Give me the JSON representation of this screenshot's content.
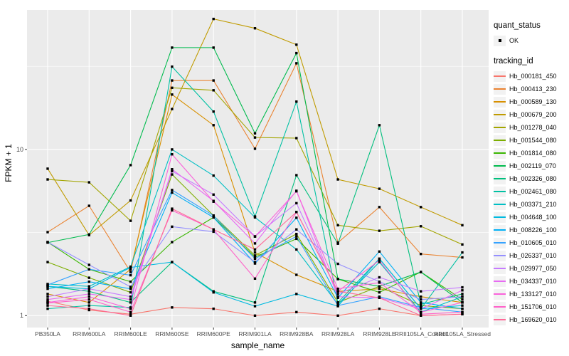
{
  "figure": {
    "background": "#FFFFFF",
    "panel_background": "#EBEBEB",
    "gridline_color": "#FFFFFF",
    "point_color": "#000000",
    "axis_text_color": "#4D4D4D"
  },
  "axes": {
    "x_title": "sample_name",
    "y_title": "FPKM + 1",
    "y_tick_labels": [
      "10",
      "1"
    ]
  },
  "legend": {
    "quant_status_title": "quant_status",
    "quant_status_items": [
      {
        "label": "OK",
        "symbol": "point"
      }
    ],
    "tracking_title": "tracking_id"
  },
  "chart_data": {
    "type": "line",
    "title": "",
    "xlabel": "sample_name",
    "ylabel": "FPKM + 1",
    "y_scale": "log10",
    "ylim": [
      0.85,
      80
    ],
    "y_major_gridlines": [
      1,
      10
    ],
    "y_minor_gridlines": [
      3.162,
      31.62
    ],
    "grid": true,
    "legend_position": "right",
    "point_shape": "small-black-square",
    "categories": [
      "PB350LA",
      "RRIM600LA",
      "RRIM600LE",
      "RRIM600SE",
      "RRIM600PE",
      "RRIM901LA",
      "RRIM928BA",
      "RRIM928LA",
      "RRIM928LE",
      "RRII105LA_Control",
      "RRII105LA_Stressed"
    ],
    "series": [
      {
        "name": "Hb_000181_450",
        "color": "#F8766D",
        "values": [
          1.22,
          1.08,
          1.02,
          1.12,
          1.1,
          1.0,
          1.05,
          1.0,
          1.1,
          1.0,
          1.02
        ]
      },
      {
        "name": "Hb_000413_230",
        "color": "#EA8331",
        "values": [
          3.18,
          4.58,
          1.83,
          26,
          26,
          10.1,
          33,
          2.75,
          4.5,
          2.35,
          2.24
        ]
      },
      {
        "name": "Hb_000589_130",
        "color": "#D89000",
        "values": [
          1.35,
          1.2,
          1.9,
          21.4,
          14,
          2.4,
          1.76,
          1.4,
          1.45,
          1.3,
          1.2
        ]
      },
      {
        "name": "Hb_000679_200",
        "color": "#C09B00",
        "values": [
          7.66,
          3.05,
          4.93,
          17.5,
          61,
          53.6,
          42.7,
          6.6,
          5.8,
          4.5,
          3.5
        ]
      },
      {
        "name": "Hb_001278_040",
        "color": "#A3A500",
        "values": [
          6.6,
          6.34,
          3.72,
          23.5,
          22.7,
          11.8,
          11.7,
          3.5,
          3.24,
          3.45,
          2.68
        ]
      },
      {
        "name": "Hb_001544_080",
        "color": "#7CAE00",
        "values": [
          2.1,
          1.69,
          1.38,
          7.07,
          4.0,
          2.3,
          3.1,
          1.2,
          1.5,
          1.15,
          1.1
        ]
      },
      {
        "name": "Hb_001814_080",
        "color": "#39B600",
        "values": [
          2.77,
          1.9,
          1.6,
          2.77,
          3.9,
          2.25,
          2.9,
          1.66,
          1.38,
          1.83,
          1.25
        ]
      },
      {
        "name": "Hb_002119_070",
        "color": "#00BB4E",
        "values": [
          2.75,
          3.08,
          8.05,
          41,
          41,
          12.5,
          38,
          1.66,
          1.5,
          1.83,
          1.2
        ]
      },
      {
        "name": "Hb_002326_080",
        "color": "#00BF7D",
        "values": [
          1.5,
          1.4,
          1.2,
          2.1,
          1.4,
          1.2,
          7.0,
          2.71,
          14,
          1.17,
          1.35
        ]
      },
      {
        "name": "Hb_002461_080",
        "color": "#00C1A3",
        "values": [
          1.1,
          1.15,
          1.12,
          31.5,
          16.9,
          3.95,
          19.4,
          1.2,
          2.2,
          1.1,
          2.4
        ]
      },
      {
        "name": "Hb_003371_210",
        "color": "#00BFC4",
        "values": [
          1.55,
          1.5,
          1.97,
          10.0,
          6.96,
          3.9,
          2.5,
          1.17,
          2.1,
          1.05,
          1.3
        ]
      },
      {
        "name": "Hb_004648_100",
        "color": "#00BAE0",
        "values": [
          1.5,
          1.45,
          1.95,
          2.1,
          1.38,
          1.14,
          1.35,
          1.14,
          2.2,
          1.1,
          1.15
        ]
      },
      {
        "name": "Hb_008226_100",
        "color": "#00B0F6",
        "values": [
          1.45,
          1.6,
          1.45,
          5.5,
          3.9,
          2.06,
          3.88,
          1.28,
          2.43,
          1.2,
          1.1
        ]
      },
      {
        "name": "Hb_010605_010",
        "color": "#35A2FF",
        "values": [
          1.53,
          1.9,
          1.75,
          5.7,
          4.0,
          2.2,
          3.0,
          1.15,
          1.3,
          1.12,
          1.05
        ]
      },
      {
        "name": "Hb_026337_010",
        "color": "#9590FF",
        "values": [
          2.77,
          2.02,
          1.49,
          3.43,
          3.2,
          2.1,
          3.3,
          2.05,
          1.6,
          1.25,
          1.3
        ]
      },
      {
        "name": "Hb_029977_050",
        "color": "#C77CFF",
        "values": [
          1.3,
          1.45,
          1.3,
          7.4,
          5.35,
          3.0,
          4.75,
          1.35,
          1.7,
          1.4,
          1.48
        ]
      },
      {
        "name": "Hb_034337_010",
        "color": "#E76BF3",
        "values": [
          1.25,
          1.35,
          1.25,
          7.6,
          4.9,
          2.72,
          5.64,
          1.3,
          1.28,
          1.1,
          1.42
        ]
      },
      {
        "name": "Hb_133127_010",
        "color": "#FA62DB",
        "values": [
          1.2,
          1.3,
          1.1,
          9.35,
          4.85,
          2.99,
          5.6,
          1.45,
          1.58,
          1.05,
          1.2
        ]
      },
      {
        "name": "Hb_151706_010",
        "color": "#FF61C9",
        "values": [
          1.19,
          1.25,
          1.05,
          4.3,
          3.3,
          1.67,
          4.2,
          1.4,
          2.15,
          1.02,
          1.05
        ]
      },
      {
        "name": "Hb_169620_010",
        "color": "#FF6A98",
        "values": [
          1.15,
          1.1,
          1.0,
          4.4,
          3.3,
          2.5,
          4.2,
          1.4,
          1.28,
          1.0,
          1.02
        ]
      }
    ]
  }
}
